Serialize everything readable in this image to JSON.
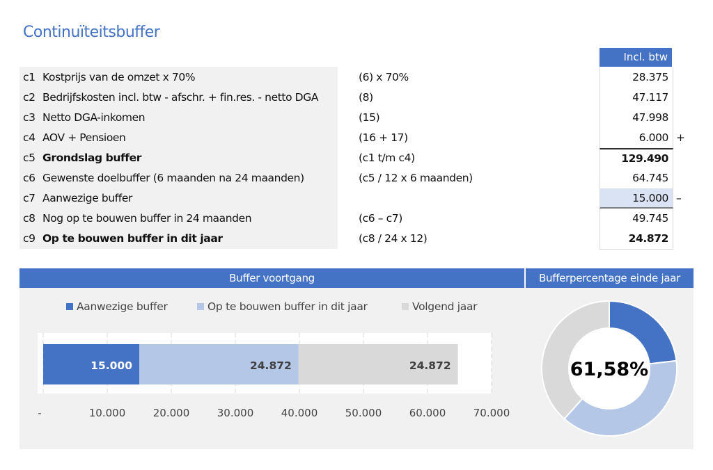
{
  "title": "Continuïteitsbuffer",
  "table": {
    "value_header": "Incl. btw",
    "rows": [
      {
        "code": "c1",
        "label": "Kostprijs van de omzet x 70%",
        "formula": "(6) x 70%",
        "value": "28.375",
        "sign": "",
        "bold": false
      },
      {
        "code": "c2",
        "label": "Bedrijfskosten incl. btw - afschr. + fin.res. - netto DGA",
        "formula": "(8)",
        "value": "47.117",
        "sign": "",
        "bold": false
      },
      {
        "code": "c3",
        "label": "Netto DGA-inkomen",
        "formula": "(15)",
        "value": "47.998",
        "sign": "",
        "bold": false
      },
      {
        "code": "c4",
        "label": "AOV + Pensioen",
        "formula": "(16 + 17)",
        "value": "6.000",
        "sign": "+",
        "bold": false
      },
      {
        "code": "c5",
        "label": "Grondslag buffer",
        "formula": "(c1 t/m c4)",
        "value": "129.490",
        "sign": "",
        "bold": true
      },
      {
        "code": "c6",
        "label": "Gewenste doelbuffer (6 maanden na 24 maanden)",
        "formula": "(c5 / 12 x 6 maanden)",
        "value": "64.745",
        "sign": "",
        "bold": false
      },
      {
        "code": "c7",
        "label": "Aanwezige buffer",
        "formula": "",
        "value": "15.000",
        "sign": "–",
        "bold": false,
        "input": true
      },
      {
        "code": "c8",
        "label": "Nog op te bouwen buffer in 24 maanden",
        "formula": "(c6 – c7)",
        "value": "49.745",
        "sign": "",
        "bold": false
      },
      {
        "code": "c9",
        "label": "Op te bouwen buffer in dit jaar",
        "formula": "(c8 / 24 x 12)",
        "value": "24.872",
        "sign": "",
        "bold": true
      }
    ]
  },
  "chart_data": [
    {
      "type": "bar",
      "orientation": "horizontal",
      "stacked": true,
      "title": "Buffer voortgang",
      "series": [
        {
          "name": "Aanwezige buffer",
          "value": 15000,
          "label": "15.000",
          "color": "#4472C4"
        },
        {
          "name": "Op te bouwen buffer in dit jaar",
          "value": 24872,
          "label": "24.872",
          "color": "#B4C7E7"
        },
        {
          "name": "Volgend jaar",
          "value": 24872,
          "label": "24.872",
          "color": "#D9D9D9"
        }
      ],
      "xlim": [
        0,
        70000
      ],
      "tick_labels": [
        "-",
        "10.000",
        "20.000",
        "30.000",
        "40.000",
        "50.000",
        "60.000",
        "70.000"
      ],
      "legend": "top",
      "grid": true
    },
    {
      "type": "pie",
      "donut": true,
      "title": "Bufferpercentage einde jaar",
      "values": [
        15000,
        24872,
        24872
      ],
      "colors": [
        "#4472C4",
        "#B4C7E7",
        "#D9D9D9"
      ],
      "center_label": "61,58%"
    }
  ]
}
